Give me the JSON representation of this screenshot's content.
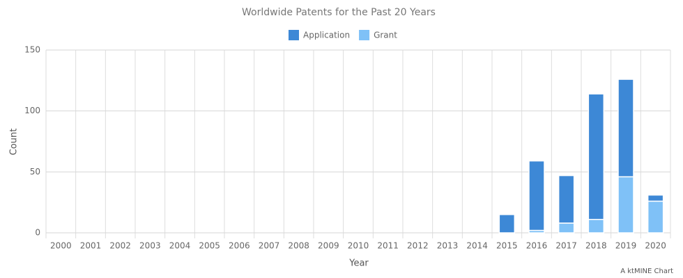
{
  "chart_data": {
    "type": "stacked-bar",
    "title": "Worldwide Patents for the Past 20 Years",
    "x_label": "Year",
    "y_label": "Count",
    "credit": "A ktMINE Chart",
    "categories": [
      "2000",
      "2001",
      "2002",
      "2003",
      "2004",
      "2005",
      "2006",
      "2007",
      "2008",
      "2009",
      "2010",
      "2011",
      "2012",
      "2013",
      "2014",
      "2015",
      "2016",
      "2017",
      "2018",
      "2019",
      "2020"
    ],
    "series": [
      {
        "name": "Grant",
        "color": "#7fc1f7",
        "values": [
          0,
          0,
          0,
          0,
          0,
          0,
          0,
          0,
          0,
          0,
          0,
          0,
          0,
          0,
          0,
          0,
          2,
          8,
          11,
          46,
          26
        ]
      },
      {
        "name": "Application",
        "color": "#3d88d6",
        "values": [
          0,
          0,
          0,
          0,
          0,
          0,
          0,
          0,
          0,
          0,
          0,
          0,
          0,
          0,
          0,
          15,
          57,
          39,
          103,
          80,
          5
        ]
      }
    ],
    "ylim": [
      0,
      150
    ],
    "yticks": [
      0,
      50,
      100,
      150
    ],
    "grid": true,
    "legend": "top"
  }
}
